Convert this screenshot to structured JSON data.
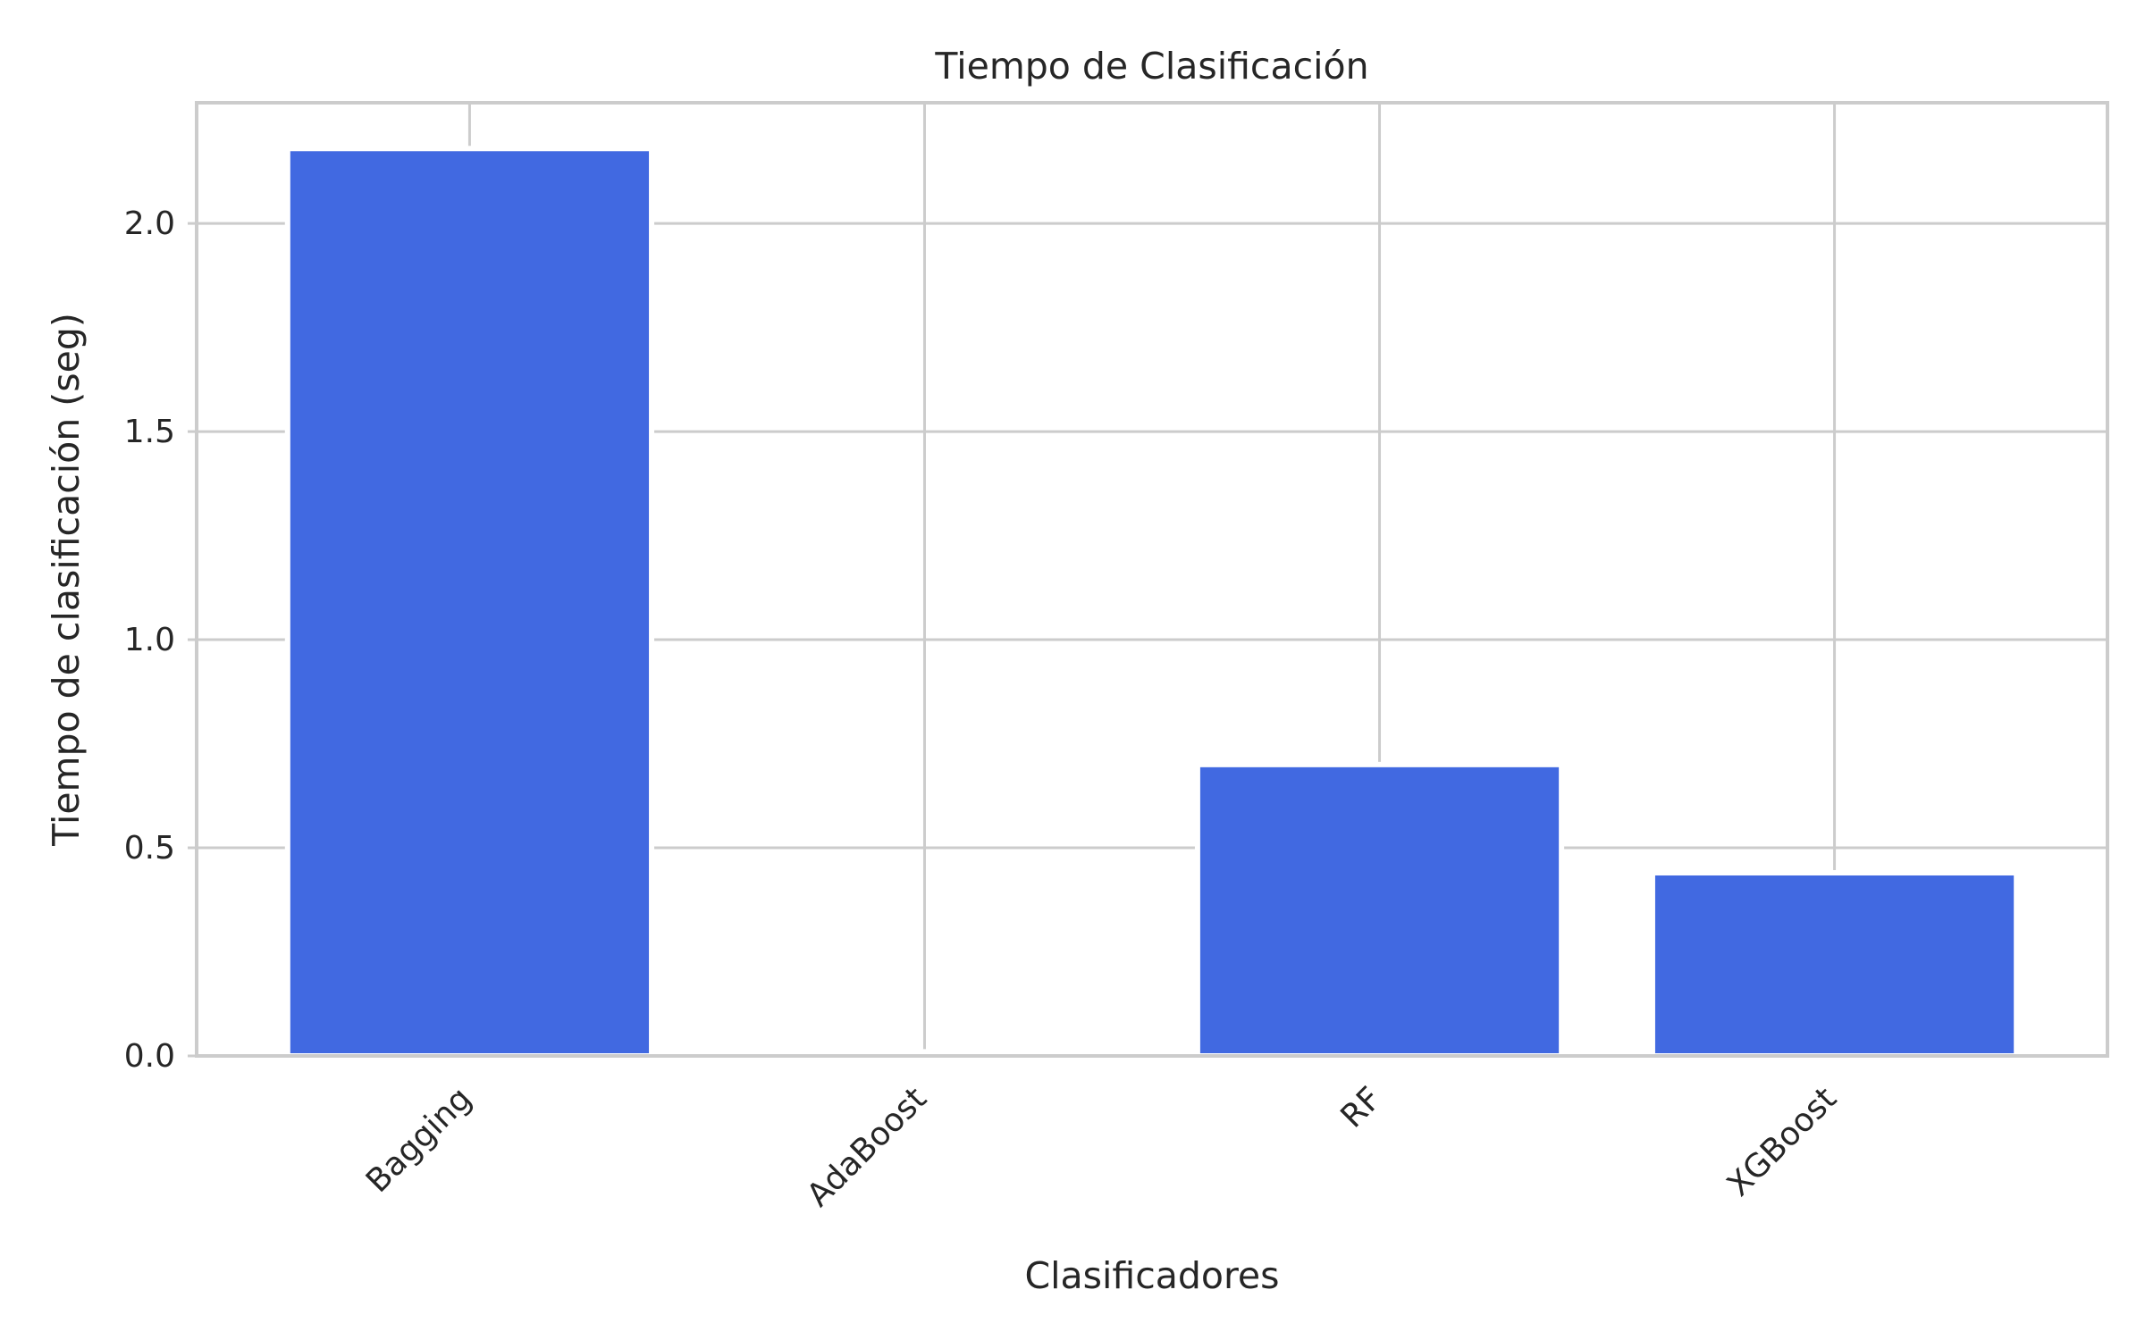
{
  "chart_data": {
    "type": "bar",
    "title": "Tiempo de Clasificación",
    "xlabel": "Clasificadores",
    "ylabel": "Tiempo de clasificación (seg)",
    "categories": [
      "Bagging",
      "AdaBoost",
      "RF",
      "XGBoost"
    ],
    "values": [
      2.18,
      0.01,
      0.7,
      0.44
    ],
    "ylim": [
      0,
      2.29
    ],
    "yticks": [
      0.0,
      0.5,
      1.0,
      1.5,
      2.0
    ],
    "ytick_labels": [
      "0.0",
      "0.5",
      "1.0",
      "1.5",
      "2.0"
    ],
    "grid": true,
    "bar_color": "#4169e1",
    "grid_color": "#cccccc",
    "text_color": "#262626"
  }
}
